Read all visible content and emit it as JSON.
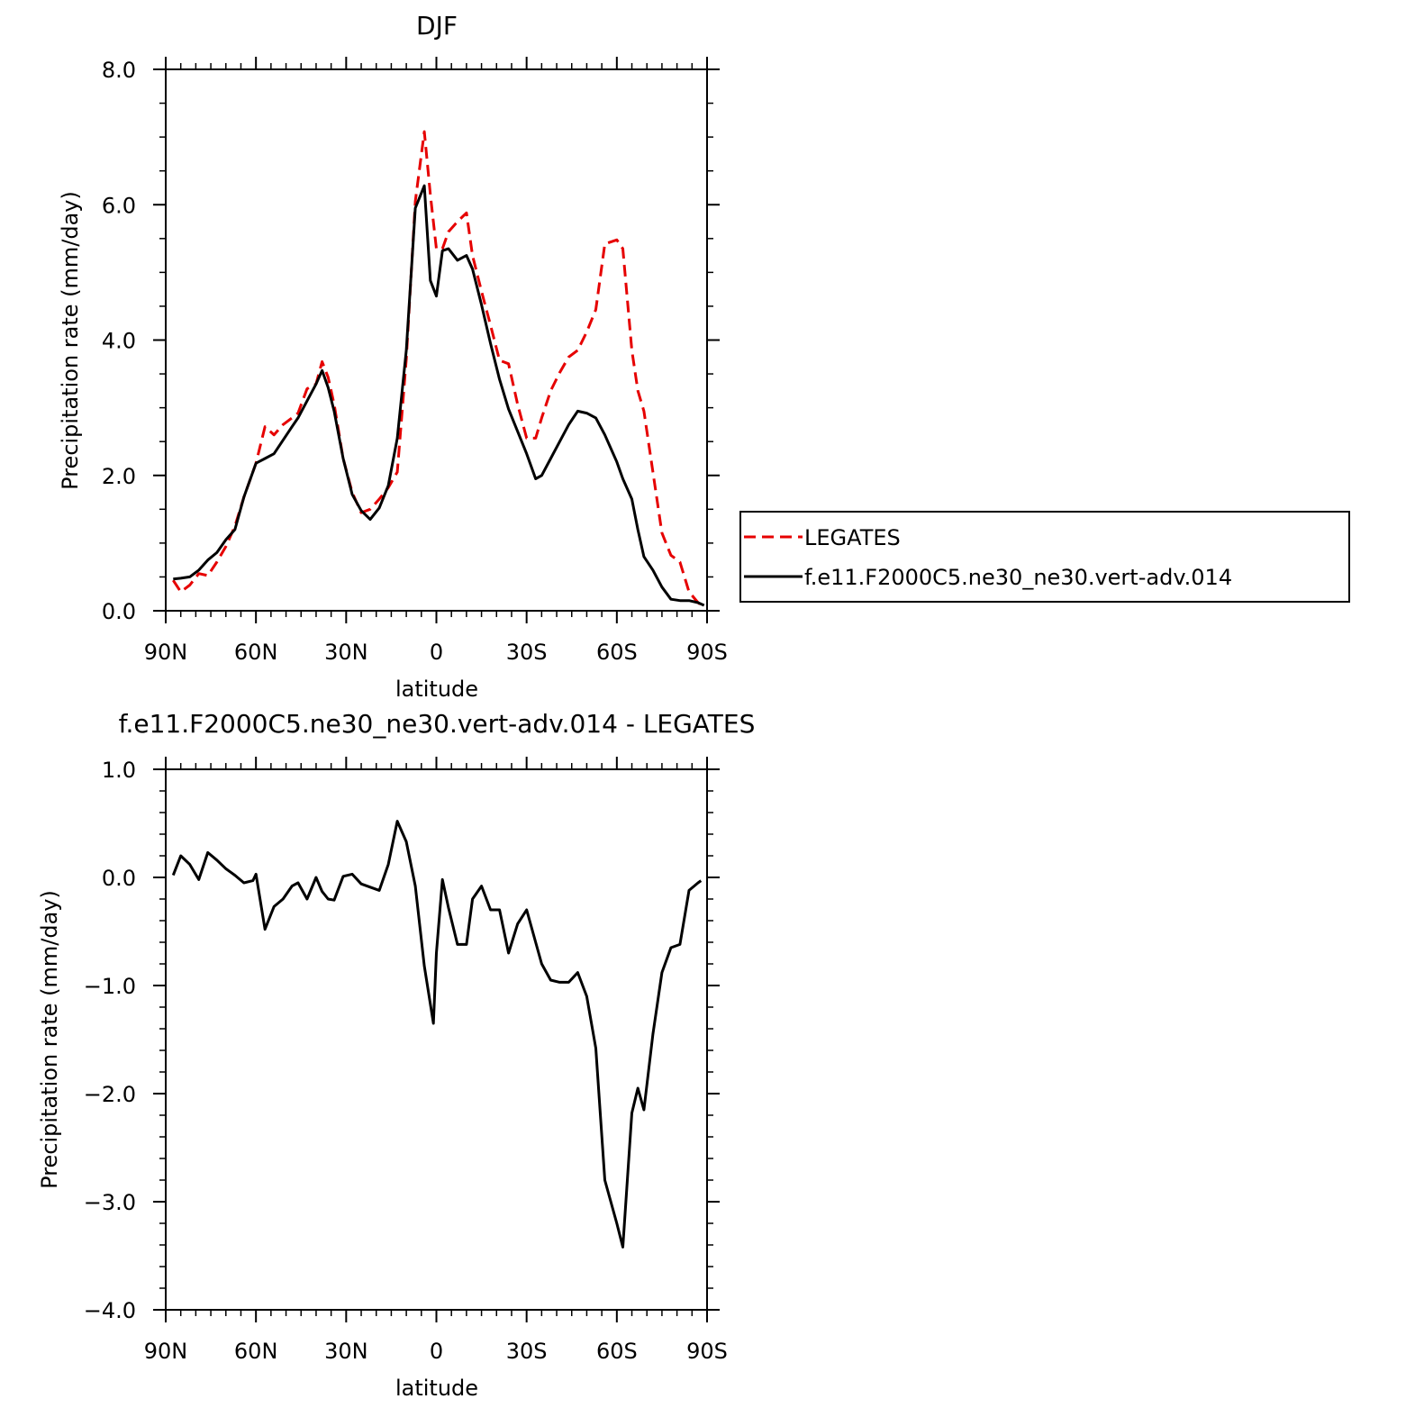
{
  "chart_data": [
    {
      "type": "line",
      "title": "DJF",
      "xlabel": "latitude",
      "ylabel": "Precipitation rate (mm/day)",
      "xlim": [
        90,
        -90
      ],
      "ylim": [
        0,
        8
      ],
      "xticks": [
        {
          "value": 90,
          "label": "90N"
        },
        {
          "value": 60,
          "label": "60N"
        },
        {
          "value": 30,
          "label": "30N"
        },
        {
          "value": 0,
          "label": "0"
        },
        {
          "value": -30,
          "label": "30S"
        },
        {
          "value": -60,
          "label": "60S"
        },
        {
          "value": -90,
          "label": "90S"
        }
      ],
      "yticks": [
        {
          "value": 0,
          "label": "0.0"
        },
        {
          "value": 2,
          "label": "2.0"
        },
        {
          "value": 4,
          "label": "4.0"
        },
        {
          "value": 6,
          "label": "6.0"
        },
        {
          "value": 8,
          "label": "8.0"
        }
      ],
      "legend": "right",
      "series": [
        {
          "name": "LEGATES",
          "color": "#e60000",
          "dash": true,
          "x": [
            87.5,
            85,
            82,
            79,
            76,
            73,
            70,
            67,
            64,
            60,
            57,
            54,
            51,
            48,
            46,
            43,
            40,
            38,
            36,
            34,
            31,
            28,
            25,
            22,
            19,
            16,
            13,
            10,
            7,
            4,
            2,
            0,
            -2,
            -4,
            -7,
            -10,
            -12,
            -15,
            -18,
            -21,
            -24,
            -27,
            -30,
            -33,
            -35,
            -38,
            -41,
            -44,
            -47,
            -50,
            -53,
            -56,
            -60,
            -62,
            -65,
            -67,
            -69,
            -72,
            -75,
            -78,
            -81,
            -84,
            -87,
            -89
          ],
          "y": [
            0.45,
            0.28,
            0.38,
            0.55,
            0.52,
            0.72,
            0.95,
            1.25,
            1.68,
            2.18,
            2.72,
            2.6,
            2.75,
            2.85,
            2.92,
            3.28,
            3.35,
            3.68,
            3.45,
            3.05,
            2.25,
            1.75,
            1.45,
            1.5,
            1.65,
            1.82,
            2.05,
            3.72,
            6.05,
            7.08,
            6.15,
            5.35,
            5.35,
            5.6,
            5.75,
            5.88,
            5.25,
            4.72,
            4.22,
            3.7,
            3.65,
            3.05,
            2.55,
            2.55,
            2.85,
            3.25,
            3.52,
            3.75,
            3.85,
            4.12,
            4.45,
            5.42,
            5.48,
            5.35,
            3.85,
            3.25,
            2.95,
            2.05,
            1.15,
            0.82,
            0.72,
            0.28,
            0.12,
            0.05
          ]
        },
        {
          "name": "f.e11.F2000C5.ne30_ne30.vert-adv.014",
          "color": "#000000",
          "dash": false,
          "x": [
            87.5,
            85,
            82,
            79,
            76,
            73,
            70,
            67,
            64,
            60,
            57,
            54,
            51,
            48,
            46,
            43,
            40,
            38,
            36,
            34,
            31,
            28,
            25,
            22,
            19,
            16,
            13,
            10,
            7,
            4,
            2,
            0,
            -2,
            -4,
            -7,
            -10,
            -12,
            -15,
            -18,
            -21,
            -24,
            -27,
            -30,
            -33,
            -35,
            -38,
            -41,
            -44,
            -47,
            -50,
            -53,
            -56,
            -60,
            -62,
            -65,
            -67,
            -69,
            -72,
            -75,
            -78,
            -81,
            -84,
            -87,
            -89
          ],
          "y": [
            0.47,
            0.48,
            0.5,
            0.6,
            0.75,
            0.86,
            1.05,
            1.2,
            1.68,
            2.18,
            2.25,
            2.32,
            2.52,
            2.72,
            2.85,
            3.1,
            3.35,
            3.55,
            3.3,
            2.95,
            2.25,
            1.72,
            1.48,
            1.35,
            1.52,
            1.85,
            2.55,
            3.85,
            5.95,
            6.28,
            4.88,
            4.65,
            5.32,
            5.35,
            5.18,
            5.25,
            5.05,
            4.52,
            3.95,
            3.42,
            2.98,
            2.65,
            2.32,
            1.95,
            2.0,
            2.25,
            2.5,
            2.75,
            2.95,
            2.92,
            2.85,
            2.6,
            2.2,
            1.95,
            1.65,
            1.2,
            0.8,
            0.6,
            0.35,
            0.17,
            0.15,
            0.15,
            0.12,
            0.08
          ]
        }
      ]
    },
    {
      "type": "line",
      "title": "f.e11.F2000C5.ne30_ne30.vert-adv.014 - LEGATES",
      "xlabel": "latitude",
      "ylabel": "Precipitation rate (mm/day)",
      "xlim": [
        90,
        -90
      ],
      "ylim": [
        -4,
        1
      ],
      "xticks": [
        {
          "value": 90,
          "label": "90N"
        },
        {
          "value": 60,
          "label": "60N"
        },
        {
          "value": 30,
          "label": "30N"
        },
        {
          "value": 0,
          "label": "0"
        },
        {
          "value": -30,
          "label": "30S"
        },
        {
          "value": -60,
          "label": "60S"
        },
        {
          "value": -90,
          "label": "90S"
        }
      ],
      "yticks": [
        {
          "value": 1,
          "label": "1.0"
        },
        {
          "value": 0,
          "label": "0.0"
        },
        {
          "value": -1,
          "label": "−1.0"
        },
        {
          "value": -2,
          "label": "−2.0"
        },
        {
          "value": -3,
          "label": "−3.0"
        },
        {
          "value": -4,
          "label": "−4.0"
        }
      ],
      "series": [
        {
          "color": "#000000",
          "dash": false,
          "x": [
            87.5,
            85,
            82,
            79,
            76,
            73,
            70,
            67,
            64,
            61,
            60,
            57,
            54,
            51,
            48,
            46,
            43,
            40,
            38,
            36,
            34,
            31,
            28,
            25,
            22,
            19,
            16,
            13,
            10,
            7,
            4,
            1,
            0,
            -2,
            -4,
            -7,
            -10,
            -12,
            -15,
            -18,
            -21,
            -24,
            -27,
            -30,
            -33,
            -35,
            -38,
            -41,
            -44,
            -47,
            -50,
            -53,
            -56,
            -60,
            -62,
            -65,
            -67,
            -69,
            -72,
            -75,
            -78,
            -81,
            -84,
            -87,
            -88
          ],
          "y": [
            0.02,
            0.2,
            0.12,
            -0.02,
            0.23,
            0.16,
            0.08,
            0.02,
            -0.05,
            -0.03,
            0.03,
            -0.48,
            -0.27,
            -0.2,
            -0.08,
            -0.05,
            -0.2,
            0.0,
            -0.13,
            -0.2,
            -0.21,
            0.01,
            0.03,
            -0.06,
            -0.09,
            -0.12,
            0.12,
            0.52,
            0.33,
            -0.08,
            -0.82,
            -1.35,
            -0.7,
            -0.02,
            -0.28,
            -0.62,
            -0.62,
            -0.2,
            -0.08,
            -0.3,
            -0.3,
            -0.7,
            -0.43,
            -0.3,
            -0.6,
            -0.8,
            -0.95,
            -0.97,
            -0.97,
            -0.88,
            -1.1,
            -1.58,
            -2.8,
            -3.2,
            -3.42,
            -2.18,
            -1.95,
            -2.15,
            -1.45,
            -0.88,
            -0.65,
            -0.62,
            -0.12,
            -0.05,
            -0.03
          ]
        }
      ]
    }
  ]
}
